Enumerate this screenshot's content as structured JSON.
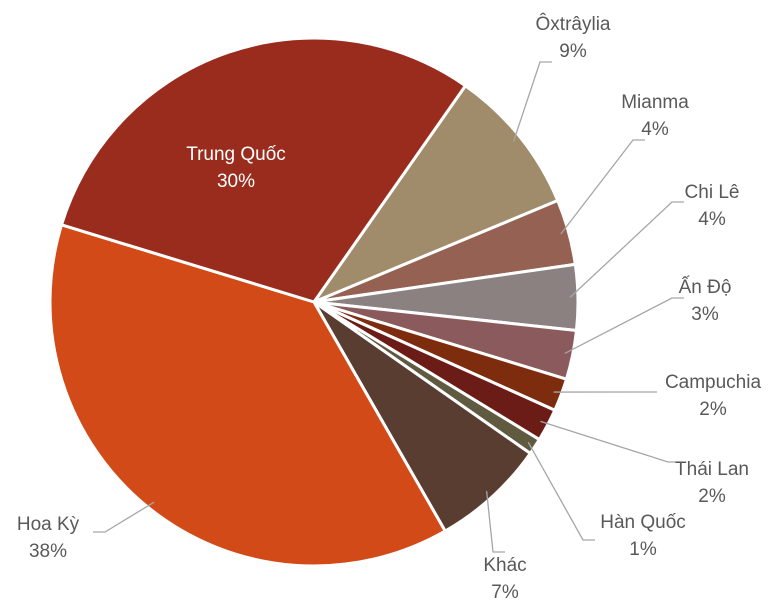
{
  "chart_data": {
    "type": "pie",
    "categories": [
      "Ôxtrâylia",
      "Mianma",
      "Chi Lê",
      "Ấn Độ",
      "Campuchia",
      "Thái Lan",
      "Hàn Quốc",
      "Khác",
      "Hoa Kỳ",
      "Trung Quốc"
    ],
    "values": [
      9,
      4,
      4,
      3,
      2,
      2,
      1,
      7,
      38,
      30
    ],
    "value_labels": [
      "9%",
      "4%",
      "4%",
      "3%",
      "2%",
      "2%",
      "1%",
      "7%",
      "38%",
      "30%"
    ],
    "colors": [
      "#a08c6a",
      "#946152",
      "#8c8181",
      "#8b5a5c",
      "#7e2c0e",
      "#6c1c16",
      "#5f5a40",
      "#5a3d31",
      "#d24a17",
      "#9a2c1e"
    ]
  }
}
